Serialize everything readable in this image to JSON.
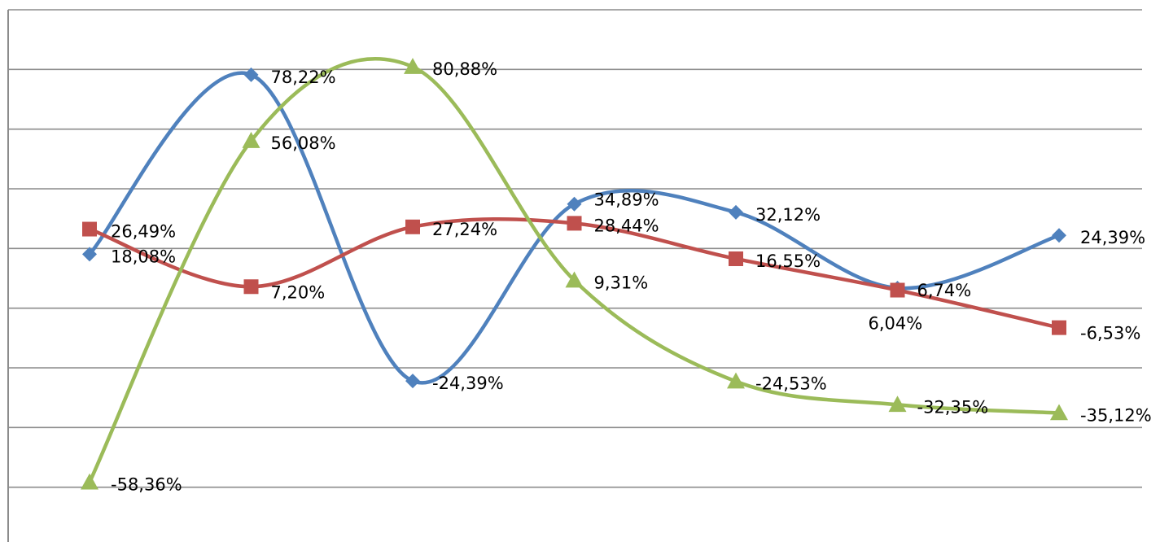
{
  "chart_data": {
    "type": "line",
    "x": [
      1,
      2,
      3,
      4,
      5,
      6,
      7
    ],
    "ylim": [
      -80,
      100
    ],
    "grid": true,
    "legend": "none",
    "series": [
      {
        "color": "#4F81BD",
        "marker": "diamond",
        "values": [
          18.08,
          78.22,
          -24.39,
          34.89,
          32.12,
          6.74,
          24.39
        ],
        "labels": [
          "18,08%",
          "78,22%",
          "-24,39%",
          "34,89%",
          "32,12%",
          "6,74%",
          "24,39%"
        ]
      },
      {
        "color": "#C0504D",
        "marker": "square",
        "values": [
          26.49,
          7.2,
          27.24,
          28.44,
          16.55,
          6.04,
          -6.53
        ],
        "labels": [
          "26,49%",
          "7,20%",
          "27,24%",
          "28,44%",
          "16,55%",
          "6,04%",
          "-6,53%"
        ]
      },
      {
        "color": "#9BBB59",
        "marker": "triangle",
        "values": [
          -58.36,
          56.08,
          80.88,
          9.31,
          -24.53,
          -32.35,
          -35.12
        ],
        "labels": [
          "-58,36%",
          "56,08%",
          "80,88%",
          "9,31%",
          "-24,53%",
          "-32,35%",
          "-35,12%"
        ]
      }
    ]
  }
}
